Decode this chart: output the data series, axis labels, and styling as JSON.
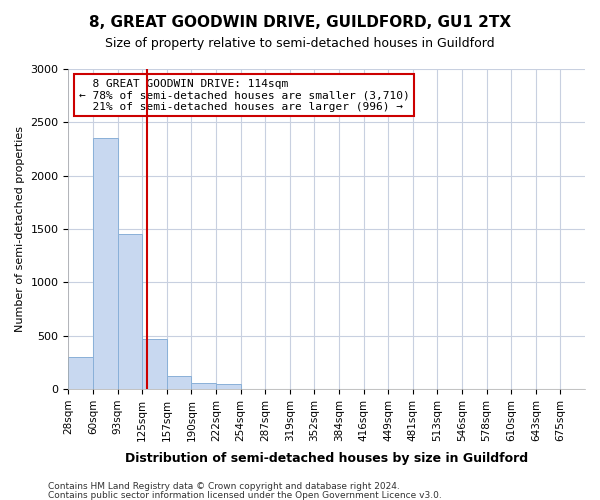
{
  "title": "8, GREAT GOODWIN DRIVE, GUILDFORD, GU1 2TX",
  "subtitle": "Size of property relative to semi-detached houses in Guildford",
  "xlabel": "Distribution of semi-detached houses by size in Guildford",
  "ylabel": "Number of semi-detached properties",
  "footnote1": "Contains HM Land Registry data © Crown copyright and database right 2024.",
  "footnote2": "Contains public sector information licensed under the Open Government Licence v3.0.",
  "bar_labels": [
    "28sqm",
    "60sqm",
    "93sqm",
    "125sqm",
    "157sqm",
    "190sqm",
    "222sqm",
    "254sqm",
    "287sqm",
    "319sqm",
    "352sqm",
    "384sqm",
    "416sqm",
    "449sqm",
    "481sqm",
    "513sqm",
    "546sqm",
    "578sqm",
    "610sqm",
    "643sqm",
    "675sqm"
  ],
  "bar_values": [
    300,
    2350,
    1450,
    470,
    125,
    55,
    45,
    0,
    0,
    0,
    0,
    0,
    0,
    0,
    0,
    0,
    0,
    0,
    0,
    0,
    0
  ],
  "bar_color": "#c8d8f0",
  "bar_edgecolor": "#8ab0d8",
  "property_size_bin": 3,
  "property_label": "8 GREAT GOODWIN DRIVE: 114sqm",
  "pct_smaller": 78,
  "count_smaller": 3710,
  "pct_larger": 21,
  "count_larger": 996,
  "vline_color": "#cc0000",
  "annotation_edgecolor": "#cc0000",
  "background_color": "#ffffff",
  "grid_color": "#c8d0e0",
  "bin_width": 32,
  "bin_edges": [
    12,
    44,
    76,
    108,
    140,
    172,
    204,
    236,
    268,
    300,
    332,
    364,
    396,
    428,
    460,
    492,
    524,
    556,
    588,
    620,
    652,
    684
  ],
  "vline_x": 114,
  "ylim": [
    0,
    3000
  ],
  "yticks": [
    0,
    500,
    1000,
    1500,
    2000,
    2500,
    3000
  ]
}
